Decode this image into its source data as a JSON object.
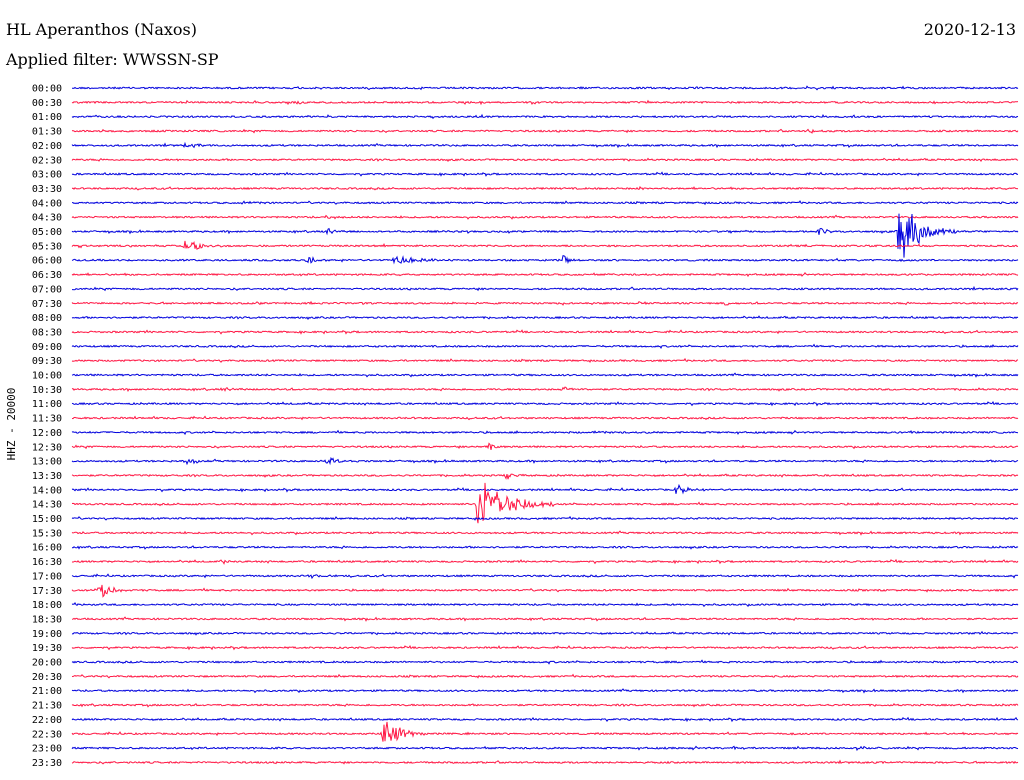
{
  "header": {
    "station": "HL Aperanthos (Naxos)",
    "date": "2020-12-13",
    "filter_label": "Applied filter: WWSSN-SP"
  },
  "chart_data": {
    "type": "line",
    "ylabel": "HHZ - 20000",
    "colors": {
      "even": "#0000dd",
      "odd": "#ff1744"
    },
    "traces": [
      "00:00",
      "00:30",
      "01:00",
      "01:30",
      "02:00",
      "02:30",
      "03:00",
      "03:30",
      "04:00",
      "04:30",
      "05:00",
      "05:30",
      "06:00",
      "06:30",
      "07:00",
      "07:30",
      "08:00",
      "08:30",
      "09:00",
      "09:30",
      "10:00",
      "10:30",
      "11:00",
      "11:30",
      "12:00",
      "12:30",
      "13:00",
      "13:30",
      "14:00",
      "14:30",
      "15:00",
      "15:30",
      "16:00",
      "16:30",
      "17:00",
      "17:30",
      "18:00",
      "18:30",
      "19:00",
      "19:30",
      "20:00",
      "20:30",
      "21:00",
      "21:30",
      "22:00",
      "22:30",
      "23:00",
      "23:30"
    ],
    "events": [
      {
        "trace": 1,
        "pos": 0.24,
        "amp": 0.3,
        "dur": 0.02
      },
      {
        "trace": 1,
        "pos": 0.91,
        "amp": 0.2,
        "dur": 0.02
      },
      {
        "trace": 3,
        "pos": 0.78,
        "amp": 0.3,
        "dur": 0.02
      },
      {
        "trace": 4,
        "pos": 0.12,
        "amp": 0.35,
        "dur": 0.035
      },
      {
        "trace": 7,
        "pos": 0.6,
        "amp": 0.3,
        "dur": 0.02
      },
      {
        "trace": 8,
        "pos": 0.18,
        "amp": 0.35,
        "dur": 0.025
      },
      {
        "trace": 9,
        "pos": 0.27,
        "amp": 0.3,
        "dur": 0.025
      },
      {
        "trace": 10,
        "pos": 0.27,
        "amp": 0.5,
        "dur": 0.02
      },
      {
        "trace": 10,
        "pos": 0.79,
        "amp": 0.45,
        "dur": 0.025
      },
      {
        "trace": 10,
        "pos": 0.875,
        "amp": 4.5,
        "dur": 0.06
      },
      {
        "trace": 11,
        "pos": 0.12,
        "amp": 1.2,
        "dur": 0.04
      },
      {
        "trace": 12,
        "pos": 0.25,
        "amp": 0.6,
        "dur": 0.02
      },
      {
        "trace": 12,
        "pos": 0.34,
        "amp": 0.7,
        "dur": 0.06
      },
      {
        "trace": 12,
        "pos": 0.52,
        "amp": 0.7,
        "dur": 0.02
      },
      {
        "trace": 15,
        "pos": 0.6,
        "amp": 0.3,
        "dur": 0.015
      },
      {
        "trace": 15,
        "pos": 0.69,
        "amp": 0.3,
        "dur": 0.02
      },
      {
        "trace": 21,
        "pos": 0.16,
        "amp": 0.25,
        "dur": 0.03
      },
      {
        "trace": 21,
        "pos": 0.52,
        "amp": 0.35,
        "dur": 0.02
      },
      {
        "trace": 24,
        "pos": 0.55,
        "amp": 0.25,
        "dur": 0.02
      },
      {
        "trace": 24,
        "pos": 0.89,
        "amp": 0.4,
        "dur": 0.015
      },
      {
        "trace": 25,
        "pos": 0.44,
        "amp": 1.0,
        "dur": 0.012
      },
      {
        "trace": 26,
        "pos": 0.12,
        "amp": 0.5,
        "dur": 0.03
      },
      {
        "trace": 26,
        "pos": 0.27,
        "amp": 0.45,
        "dur": 0.04
      },
      {
        "trace": 27,
        "pos": 0.46,
        "amp": 0.5,
        "dur": 0.03
      },
      {
        "trace": 28,
        "pos": 0.64,
        "amp": 0.8,
        "dur": 0.03
      },
      {
        "trace": 29,
        "pos": 0.43,
        "amp": 4.0,
        "dur": 0.08
      },
      {
        "trace": 33,
        "pos": 0.16,
        "amp": 0.3,
        "dur": 0.015
      },
      {
        "trace": 34,
        "pos": 0.25,
        "amp": 0.3,
        "dur": 0.04
      },
      {
        "trace": 35,
        "pos": 0.03,
        "amp": 1.3,
        "dur": 0.03
      },
      {
        "trace": 45,
        "pos": 0.33,
        "amp": 2.2,
        "dur": 0.05
      },
      {
        "trace": 46,
        "pos": 0.7,
        "amp": 0.3,
        "dur": 0.025
      },
      {
        "trace": 46,
        "pos": 0.83,
        "amp": 0.2,
        "dur": 0.02
      }
    ]
  }
}
